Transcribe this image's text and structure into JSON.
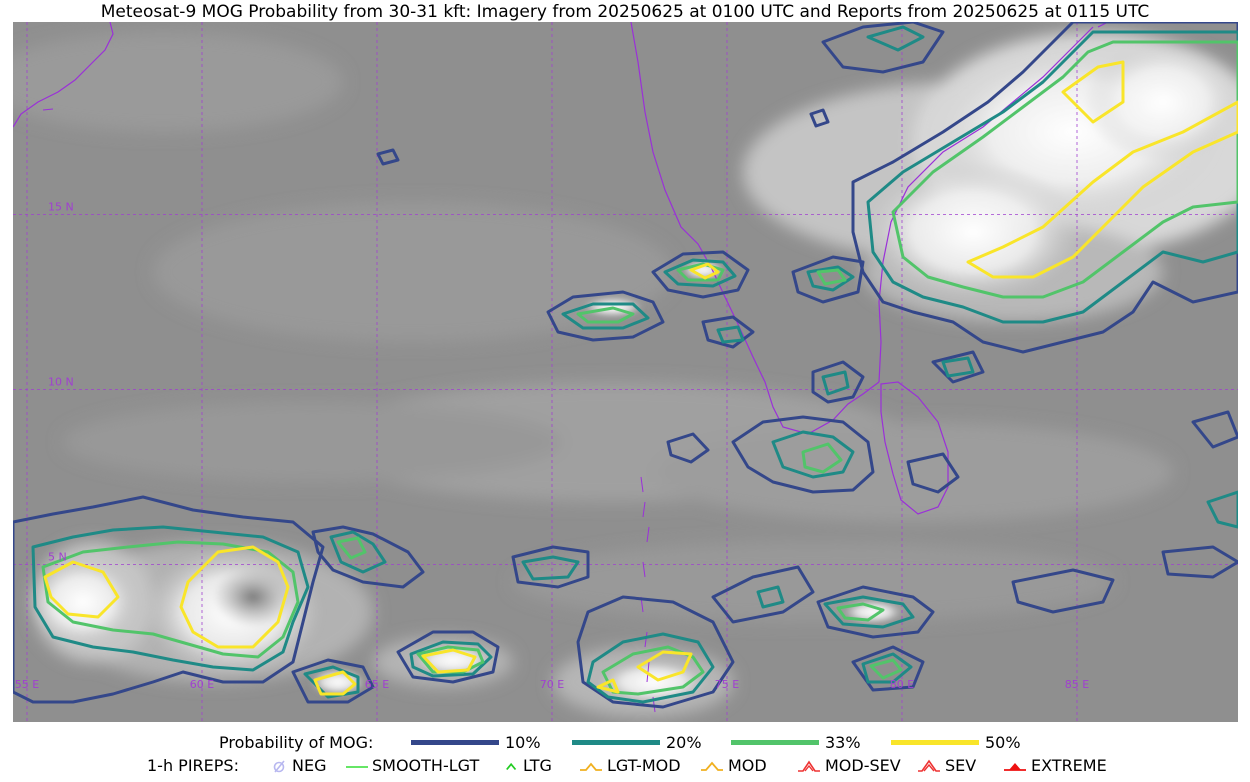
{
  "title": "Meteosat-9 MOG Probability from 30-31 kft: Imagery from 20250625 at 0100 UTC and Reports from 20250625 at 0115 UTC",
  "map": {
    "lon_min": 54.6,
    "lon_max": 89.6,
    "lat_min": 0.5,
    "lat_max": 20.5,
    "lon_lines": [
      55,
      60,
      65,
      70,
      75,
      80,
      85
    ],
    "lat_lines": [
      5,
      10,
      15
    ],
    "lon_labels": [
      "55 E",
      "60 E",
      "65 E",
      "70 E",
      "75 E",
      "80 E",
      "85 E"
    ],
    "lat_labels": [
      "5 N",
      "10 N",
      "15 N"
    ],
    "grid_color": "#a040d0",
    "coast_color": "#9a30d8"
  },
  "legend": {
    "probability_label": "Probability of MOG:",
    "levels": [
      {
        "label": "10%",
        "color": "#34478a"
      },
      {
        "label": "20%",
        "color": "#1f8a86"
      },
      {
        "label": "33%",
        "color": "#52c46a"
      },
      {
        "label": "50%",
        "color": "#f9e52a"
      }
    ],
    "pireps_label": "1-h PIREPS:",
    "pireps": [
      {
        "label": "NEG",
        "color": "#b8b8f0",
        "icon": "neg-icon"
      },
      {
        "label": "SMOOTH-LGT",
        "color": "#33dd33",
        "icon": "dash-icon"
      },
      {
        "label": "LTG",
        "color": "#22cc22",
        "icon": "caret-icon"
      },
      {
        "label": "LGT-MOD",
        "color": "#f0b020",
        "icon": "lgt-mod-icon"
      },
      {
        "label": "MOD",
        "color": "#f0b020",
        "icon": "mod-icon"
      },
      {
        "label": "MOD-SEV",
        "color": "#ee3333",
        "icon": "mod-sev-icon"
      },
      {
        "label": "SEV",
        "color": "#ee3333",
        "icon": "sev-icon"
      },
      {
        "label": "EXTREME",
        "color": "#ee1111",
        "icon": "extreme-icon"
      }
    ]
  }
}
